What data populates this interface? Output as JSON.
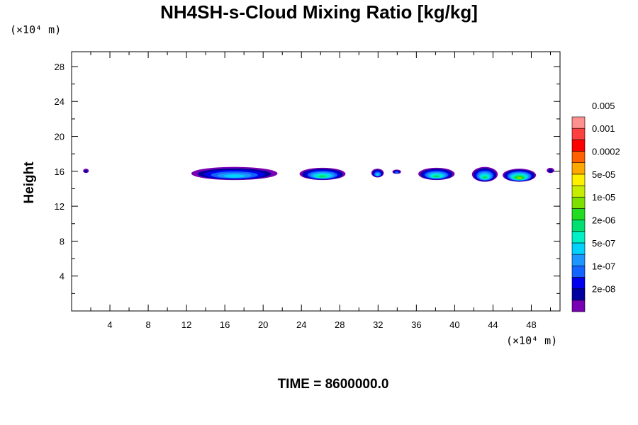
{
  "chart_data": {
    "type": "heatmap",
    "title": "NH4SH-s-Cloud Mixing Ratio [kg/kg]",
    "ylabel": "Height",
    "xlabel": "",
    "x_unit": "(×10⁴ m)",
    "y_unit": "(×10⁴ m)",
    "xlim": [
      0,
      51
    ],
    "ylim": [
      0,
      29.7
    ],
    "x_ticks": [
      4,
      8,
      12,
      16,
      20,
      24,
      28,
      32,
      36,
      40,
      44,
      48
    ],
    "y_ticks": [
      4,
      8,
      12,
      16,
      20,
      24,
      28
    ],
    "grid": false,
    "colorbar": {
      "colors": [
        "#7a00b4",
        "#0000a0",
        "#0000ee",
        "#1464ff",
        "#1e96ff",
        "#00d2ff",
        "#00f0c8",
        "#00e070",
        "#22dc22",
        "#7ee000",
        "#c8ec00",
        "#fff000",
        "#ffa800",
        "#ff6000",
        "#ff0000",
        "#ff4040",
        "#ff9090"
      ],
      "labels": [
        "2e-08",
        "1e-07",
        "5e-07",
        "2e-06",
        "1e-05",
        "5e-05",
        "0.0002",
        "0.001",
        "0.005"
      ]
    },
    "cloud_regions": [
      {
        "x_range": [
          1.2,
          1.8
        ],
        "y_range": [
          15.8,
          16.3
        ],
        "max_level": "2e-08"
      },
      {
        "x_range": [
          12.5,
          21.5
        ],
        "y_range": [
          15.0,
          16.5
        ],
        "max_level": "5e-07"
      },
      {
        "x_range": [
          23.8,
          28.6
        ],
        "y_range": [
          15.0,
          16.4
        ],
        "max_level": "2e-06"
      },
      {
        "x_range": [
          31.3,
          32.6
        ],
        "y_range": [
          15.3,
          16.3
        ],
        "max_level": "5e-07"
      },
      {
        "x_range": [
          33.5,
          34.4
        ],
        "y_range": [
          15.7,
          16.2
        ],
        "max_level": "1e-07"
      },
      {
        "x_range": [
          36.2,
          40.0
        ],
        "y_range": [
          15.0,
          16.4
        ],
        "max_level": "2e-06"
      },
      {
        "x_range": [
          41.8,
          44.5
        ],
        "y_range": [
          14.8,
          16.5
        ],
        "max_level": "2e-06"
      },
      {
        "x_range": [
          45.0,
          48.5
        ],
        "y_range": [
          14.8,
          16.3
        ],
        "max_level": "1e-05"
      },
      {
        "x_range": [
          49.6,
          50.4
        ],
        "y_range": [
          15.8,
          16.4
        ],
        "max_level": "2e-08"
      }
    ]
  },
  "footer": {
    "time_label": "TIME = 8600000.0"
  }
}
